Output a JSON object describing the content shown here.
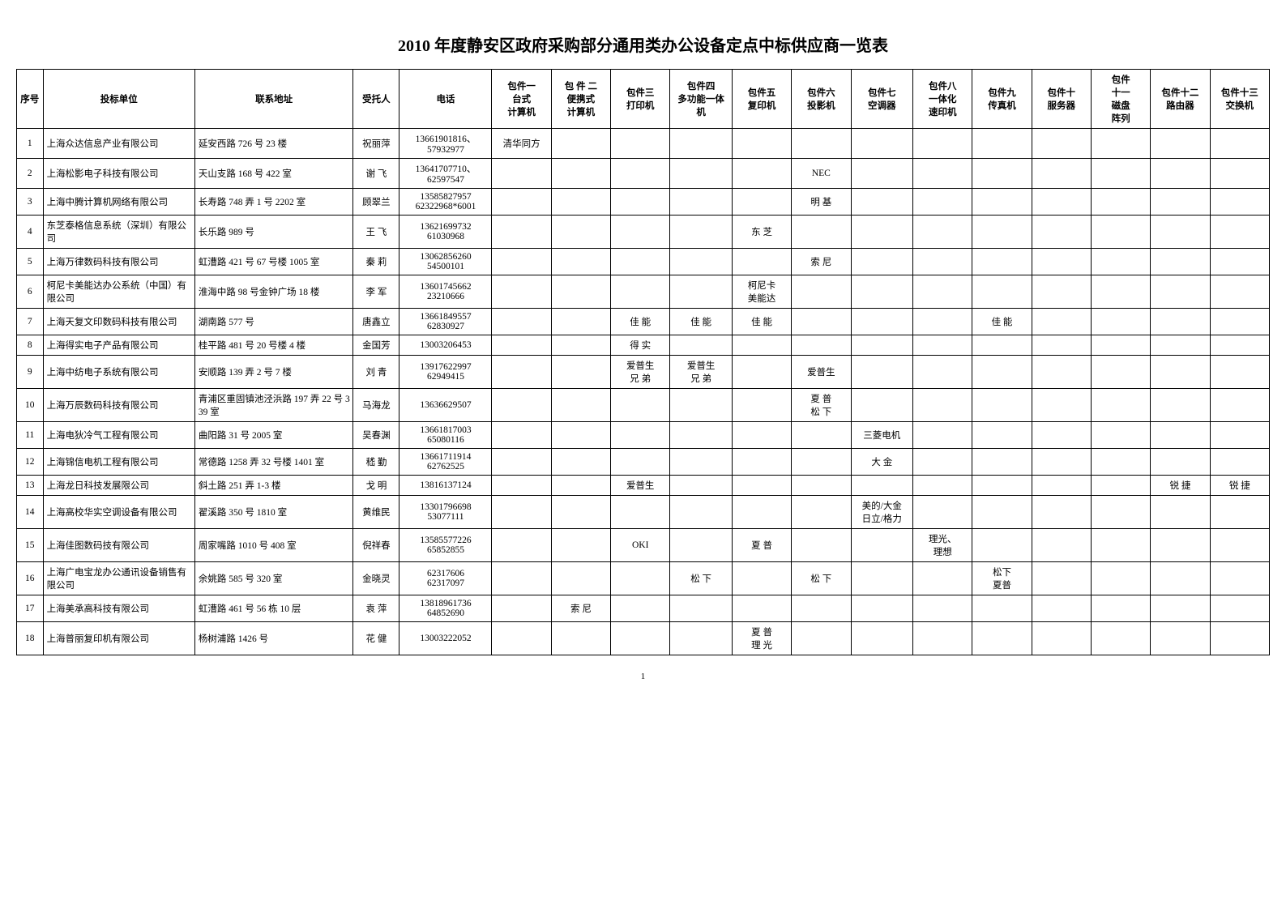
{
  "title": "2010 年度静安区政府采购部分通用类办公设备定点中标供应商一览表",
  "headers": {
    "seq": "序号",
    "unit": "投标单位",
    "addr": "联系地址",
    "person": "受托人",
    "phone": "电话",
    "c1a": "包件一",
    "c1b": "台式",
    "c1c": "计算机",
    "c2a": "包 件 二",
    "c2b": "便携式",
    "c2c": "计算机",
    "c3a": "包件三",
    "c3b": "打印机",
    "c4a": "包件四",
    "c4b": "多功能一体",
    "c4c": "机",
    "c5a": "包件五",
    "c5b": "复印机",
    "c6a": "包件六",
    "c6b": "投影机",
    "c7a": "包件七",
    "c7b": "空调器",
    "c8a": "包件八",
    "c8b": "一体化",
    "c8c": "速印机",
    "c9a": "包件九",
    "c9b": "传真机",
    "c10a": "包件十",
    "c10b": "服务器",
    "c11a": "包件",
    "c11b": "十一",
    "c11c": "磁盘",
    "c11d": "阵列",
    "c12a": "包件十二",
    "c12b": "路由器",
    "c13a": "包件十三",
    "c13b": "交换机"
  },
  "rows": [
    {
      "seq": "1",
      "unit": "上海众达信息产业有限公司",
      "addr": "延安西路 726 号 23 楼",
      "person": "祝丽萍",
      "phone": "13661901816、\n57932977",
      "c1": "清华同方"
    },
    {
      "seq": "2",
      "unit": "上海松影电子科技有限公司",
      "addr": "天山支路 168 号 422 室",
      "person": "谢 飞",
      "phone": "13641707710、\n62597547",
      "c6": "NEC"
    },
    {
      "seq": "3",
      "unit": "上海中腾计算机网络有限公司",
      "addr": "长寿路 748 弄 1 号 2202 室",
      "person": "顾翠兰",
      "phone": "13585827957\n62322968*6001",
      "c6": "明 基"
    },
    {
      "seq": "4",
      "unit": "东芝泰格信息系统（深圳）有限公司",
      "addr": "长乐路 989 号",
      "person": "王 飞",
      "phone": "13621699732\n61030968",
      "c5": "东 芝"
    },
    {
      "seq": "5",
      "unit": "上海万律数码科技有限公司",
      "addr": "虹漕路 421 号 67 号楼 1005 室",
      "person": "秦 莉",
      "phone": "13062856260\n54500101",
      "c6": "索 尼"
    },
    {
      "seq": "6",
      "unit": "柯尼卡美能达办公系统（中国）有限公司",
      "addr": "淮海中路 98 号金钟广场 18 楼",
      "person": "李 军",
      "phone": "13601745662\n23210666",
      "c5": "柯尼卡\n美能达"
    },
    {
      "seq": "7",
      "unit": "上海天复文印数码科技有限公司",
      "addr": "湖南路 577 号",
      "person": "唐鑫立",
      "phone": "13661849557\n62830927",
      "c3": "佳 能",
      "c4": "佳 能",
      "c5": "佳 能",
      "c9": "佳 能"
    },
    {
      "seq": "8",
      "unit": "上海得实电子产品有限公司",
      "addr": "桂平路 481 号 20 号楼 4 楼",
      "person": "金国芳",
      "phone": "13003206453",
      "c3": "得 实"
    },
    {
      "seq": "9",
      "unit": "上海中纺电子系统有限公司",
      "addr": "安顺路 139 弄 2 号 7 楼",
      "person": "刘 青",
      "phone": "13917622997\n62949415",
      "c3": "爱普生\n兄 弟",
      "c4": "爱普生\n兄 弟",
      "c6": "爱普生"
    },
    {
      "seq": "10",
      "unit": "上海万辰数码科技有限公司",
      "addr": "青浦区重固镇池泾浜路 197 弄 22 号 339 室",
      "person": "马海龙",
      "phone": "13636629507",
      "c6": "夏 普\n松 下"
    },
    {
      "seq": "11",
      "unit": "上海电狄冷气工程有限公司",
      "addr": "曲阳路 31 号 2005 室",
      "person": "吴春渊",
      "phone": "13661817003\n65080116",
      "c7": "三菱电机"
    },
    {
      "seq": "12",
      "unit": "上海锦信电机工程有限公司",
      "addr": "常德路 1258 弄 32 号楼 1401 室",
      "person": "嵇 勤",
      "phone": "13661711914\n62762525",
      "c7": "大 金"
    },
    {
      "seq": "13",
      "unit": "上海龙日科技发展限公司",
      "addr": "斜土路 251 弄 1-3 楼",
      "person": "戈 明",
      "phone": "13816137124",
      "c3": "爱普生",
      "c12": "锐 捷",
      "c13": "锐 捷"
    },
    {
      "seq": "14",
      "unit": "上海高校华实空调设备有限公司",
      "addr": "翟溪路 350 号 1810 室",
      "person": "黄维民",
      "phone": "13301796698\n53077111",
      "c7": "美的/大金\n日立/格力"
    },
    {
      "seq": "15",
      "unit": "上海佳图数码技有限公司",
      "addr": "周家嘴路 1010 号 408 室",
      "person": "倪祥春",
      "phone": "13585577226\n65852855",
      "c3": "OKI",
      "c5": "夏 普",
      "c8": "理光、\n理想"
    },
    {
      "seq": "16",
      "unit": "上海广电宝龙办公通讯设备销售有限公司",
      "addr": "余姚路 585 号 320 室",
      "person": "金晓灵",
      "phone": "62317606\n62317097",
      "c4": "松 下",
      "c6": "松 下",
      "c9": "松下\n夏普"
    },
    {
      "seq": "17",
      "unit": "上海美承高科技有限公司",
      "addr": "虹漕路 461 号 56 栋 10 层",
      "person": "袁 萍",
      "phone": "13818961736\n64852690",
      "c2": "索 尼"
    },
    {
      "seq": "18",
      "unit": "上海普丽复印机有限公司",
      "addr": "杨树浦路 1426 号",
      "person": "花 健",
      "phone": "13003222052",
      "c5": "夏 普\n理 光"
    }
  ],
  "page_num": "1"
}
